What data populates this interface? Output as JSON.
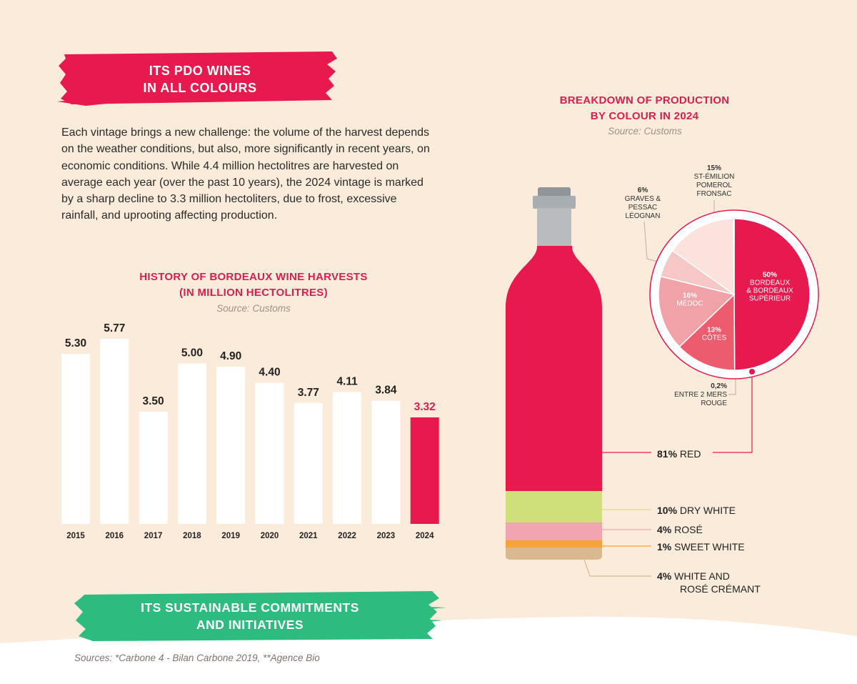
{
  "header": {
    "line1": "ITS PDO WINES",
    "line2": "IN ALL COLOURS"
  },
  "intro_text": "Each vintage brings a new challenge: the volume of the harvest depends on the weather conditions, but also, more significantly in recent years, on economic conditions. While 4.4 million hectolitres are harvested on average each year (over the past 10 years), the 2024 vintage is marked by a sharp decline to 3.3 million hectoliters, due to frost, excessive rainfall, and uprooting affecting production.",
  "colors": {
    "brand_red": "#e8194f",
    "brand_green": "#2dbb7f",
    "cream": "#fbebdb"
  },
  "chart_data": [
    {
      "type": "bar",
      "title": "HISTORY OF BORDEAUX WINE HARVESTS",
      "subtitle": "(IN MILLION HECTOLITRES)",
      "source": "Source: Customs",
      "categories": [
        "2015",
        "2016",
        "2017",
        "2018",
        "2019",
        "2020",
        "2021",
        "2022",
        "2023",
        "2024"
      ],
      "values": [
        5.3,
        5.77,
        3.5,
        5.0,
        4.9,
        4.4,
        3.77,
        4.11,
        3.84,
        3.32
      ],
      "value_labels": [
        "5.30",
        "5.77",
        "3.50",
        "5.00",
        "4.90",
        "4.40",
        "3.77",
        "4.11",
        "3.84",
        "3.32"
      ],
      "highlight_index": 9,
      "bar_color": "#ffffff",
      "highlight_color": "#e8194f",
      "ylim": [
        0,
        5.77
      ]
    },
    {
      "type": "bar",
      "orientation": "stacked-vertical",
      "title": "BREAKDOWN OF PRODUCTION",
      "subtitle": "BY COLOUR IN 2024",
      "source": "Source: Customs",
      "segments": [
        {
          "pct_label": "81%",
          "name": "RED",
          "value": 81,
          "color": "#e8194f"
        },
        {
          "pct_label": "10%",
          "name": "DRY WHITE",
          "value": 10,
          "color": "#cfe07a"
        },
        {
          "pct_label": "4%",
          "name": "ROSÉ",
          "value": 4,
          "color": "#f0a5b0"
        },
        {
          "pct_label": "1%",
          "name": "SWEET WHITE",
          "value": 1,
          "color": "#f6a33a"
        },
        {
          "pct_label": "4%",
          "name": "WHITE AND",
          "name2": "ROSÉ CRÉMANT",
          "value": 4,
          "color": "#d8b990"
        }
      ]
    },
    {
      "type": "pie",
      "slices": [
        {
          "pct_label": "50%",
          "lines": [
            "BORDEAUX",
            "& BORDEAUX",
            "SUPÉRIEUR"
          ],
          "value": 50,
          "color": "#e8194f"
        },
        {
          "pct_label": "13%",
          "lines": [
            "CÔTES"
          ],
          "value": 13,
          "color": "#ec5b6e"
        },
        {
          "pct_label": "16%",
          "lines": [
            "MÉDOC"
          ],
          "value": 16,
          "color": "#f1a2a9"
        },
        {
          "pct_label": "6%",
          "lines": [
            "GRAVES &",
            "PESSAC",
            "LÉOGNAN"
          ],
          "value": 6,
          "color": "#f7c6c6"
        },
        {
          "pct_label": "15%",
          "lines": [
            "ST-ÉMILION",
            "POMEROL",
            "FRONSAC"
          ],
          "value": 15,
          "color": "#fbe2dd"
        },
        {
          "pct_label": "0,2%",
          "lines": [
            "ENTRE 2 MERS",
            "ROUGE"
          ],
          "value": 0.2,
          "color": "#e8194f"
        }
      ]
    }
  ],
  "footer": {
    "line1": "ITS SUSTAINABLE COMMITMENTS",
    "line2": "AND INITIATIVES"
  },
  "sources_note": "Sources: *Carbone 4 - Bilan Carbone 2019, **Agence Bio"
}
